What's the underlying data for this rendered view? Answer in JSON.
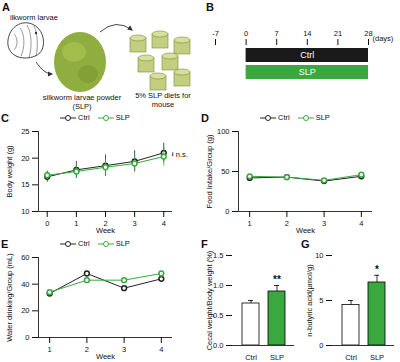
{
  "diagram": {
    "panel_label": "A",
    "labels": [
      "ilkworm larvae",
      "silkworm larvae powder (SLP)",
      "5% SLP diets for mouse"
    ]
  },
  "chart_data": [
    {
      "panel_label": "B",
      "type": "bar",
      "orientation": "horizontal",
      "categories": [
        "Ctrl",
        "SLP"
      ],
      "starts": [
        0,
        0
      ],
      "values": [
        28,
        28
      ],
      "colors": [
        "#1a1a1a",
        "#3aa83e"
      ],
      "xlim": [
        -7,
        28
      ],
      "xticks": [
        -7,
        0,
        7,
        14,
        21,
        28
      ],
      "xlabel": "(days)"
    },
    {
      "panel_label": "C",
      "type": "line",
      "x": [
        0,
        1,
        2,
        3,
        4
      ],
      "xlabel": "Week",
      "ylabel": "Body weight (g)",
      "xlim": [
        -0.3,
        4.3
      ],
      "xticks": [
        0,
        1,
        2,
        3,
        4
      ],
      "ylim": [
        10,
        25
      ],
      "yticks": [
        10,
        15,
        20,
        25
      ],
      "legend": "top",
      "marker": "circle",
      "series": [
        {
          "name": "Ctrl",
          "color": "#222222",
          "values": [
            16.5,
            17.8,
            18.6,
            19.4,
            21.0
          ],
          "errors": [
            1.0,
            1.6,
            2.0,
            2.0,
            1.8
          ]
        },
        {
          "name": "SLP",
          "color": "#3aa83e",
          "values": [
            16.8,
            17.5,
            18.3,
            19.0,
            20.3
          ],
          "errors": [
            0.8,
            1.2,
            1.4,
            1.5,
            1.8
          ]
        }
      ],
      "annotations": [
        {
          "text": "n.s.",
          "x": 4
        }
      ]
    },
    {
      "panel_label": "D",
      "type": "line",
      "x": [
        1,
        2,
        3,
        4
      ],
      "xlabel": "Week",
      "ylabel": "Food Intake/Group (g)",
      "xlim": [
        0.7,
        4.3
      ],
      "xticks": [
        1,
        2,
        3,
        4
      ],
      "ylim": [
        0,
        100
      ],
      "yticks": [
        0,
        50,
        100
      ],
      "legend": "top",
      "marker": "circle",
      "series": [
        {
          "name": "Ctrl",
          "color": "#222222",
          "values": [
            42,
            43,
            38,
            44
          ]
        },
        {
          "name": "SLP",
          "color": "#3aa83e",
          "values": [
            44,
            43,
            39,
            46
          ]
        }
      ]
    },
    {
      "panel_label": "E",
      "type": "line",
      "x": [
        1,
        2,
        3,
        4
      ],
      "xlabel": "Week",
      "ylabel": "Water drinking/Group (mL)",
      "xlim": [
        0.7,
        4.3
      ],
      "xticks": [
        1,
        2,
        3,
        4
      ],
      "ylim": [
        0,
        60
      ],
      "yticks": [
        0,
        20,
        40,
        60
      ],
      "legend": "top",
      "marker": "circle",
      "series": [
        {
          "name": "Ctrl",
          "color": "#222222",
          "values": [
            33,
            48,
            37,
            44
          ]
        },
        {
          "name": "SLP",
          "color": "#3aa83e",
          "values": [
            34,
            43,
            43,
            48
          ]
        }
      ]
    },
    {
      "panel_label": "F",
      "type": "bar",
      "categories": [
        "Ctrl",
        "SLP"
      ],
      "values": [
        0.7,
        0.9
      ],
      "errors": [
        0.05,
        0.1
      ],
      "colors": [
        "#ffffff",
        "#3aa83e"
      ],
      "ylabel": "Cecal weight/Body weight (%)",
      "ylim": [
        0,
        1.5
      ],
      "yticks": [
        {
          "value": 0,
          "label": "0.0"
        },
        {
          "value": 0.5,
          "label": "0.5"
        },
        {
          "value": 1,
          "label": "1.0"
        },
        {
          "value": 1.5,
          "label": "1.5"
        }
      ],
      "annotations": [
        {
          "text": "**",
          "category": "SLP"
        }
      ]
    },
    {
      "panel_label": "G",
      "type": "bar",
      "categories": [
        "Ctrl",
        "SLP"
      ],
      "values": [
        4.5,
        7.0
      ],
      "errors": [
        0.5,
        0.8
      ],
      "colors": [
        "#ffffff",
        "#3aa83e"
      ],
      "ylabel": "n-butyric acid(μmol/g)",
      "ylim": [
        0,
        10
      ],
      "yticks": [
        0,
        5,
        10
      ],
      "annotations": [
        {
          "text": "*",
          "category": "SLP"
        }
      ]
    }
  ]
}
